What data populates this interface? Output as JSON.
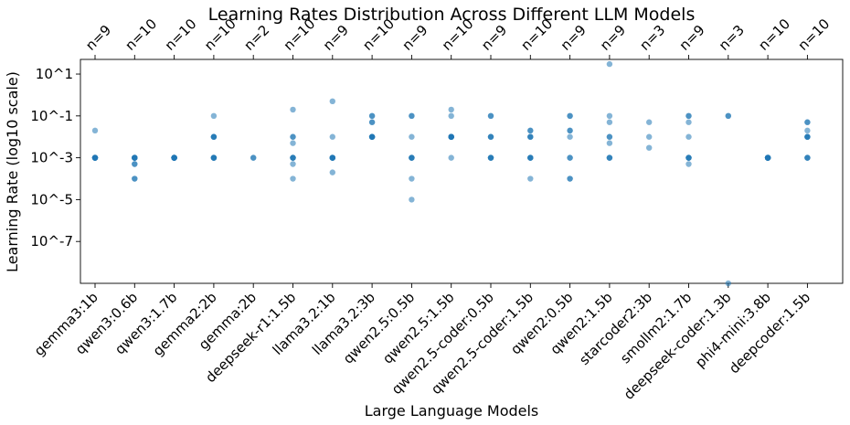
{
  "chart_data": {
    "type": "scatter",
    "title": "Learning Rates Distribution Across Different LLM Models",
    "xlabel": "Large Language Models",
    "ylabel": "Learning Rate (log10 scale)",
    "yscale": "log10",
    "ylim_log10": [
      -9,
      1.7
    ],
    "ytick_labels": [
      "10^1",
      "10^-1",
      "10^-3",
      "10^-5",
      "10^-7"
    ],
    "ytick_exponents": [
      1,
      -1,
      -3,
      -5,
      -7
    ],
    "grid": false,
    "color": "#1f77b4",
    "categories": [
      "gemma3:1b",
      "qwen3:0.6b",
      "qwen3:1.7b",
      "gemma2:2b",
      "gemma:2b",
      "deepseek-r1:1.5b",
      "llama3.2:1b",
      "llama3.2:3b",
      "qwen2.5:0.5b",
      "qwen2.5:1.5b",
      "qwen2.5-coder:0.5b",
      "qwen2.5-coder:1.5b",
      "qwen2:0.5b",
      "qwen2:1.5b",
      "starcoder2:3b",
      "smollm2:1.7b",
      "deepseek-coder:1.3b",
      "phi4-mini:3.8b",
      "deepcoder:1.5b"
    ],
    "counts": [
      "n=9",
      "n=10",
      "n=10",
      "n=10",
      "n=2",
      "n=10",
      "n=9",
      "n=10",
      "n=9",
      "n=10",
      "n=9",
      "n=10",
      "n=9",
      "n=9",
      "n=3",
      "n=9",
      "n=3",
      "n=10",
      "n=10"
    ],
    "series": [
      {
        "model": "gemma3:1b",
        "values": [
          0.02,
          0.001,
          0.001,
          0.001,
          0.001,
          0.001,
          0.001,
          0.001,
          0.001
        ]
      },
      {
        "model": "qwen3:0.6b",
        "values": [
          0.001,
          0.001,
          0.001,
          0.001,
          0.001,
          0.0005,
          0.0005,
          0.0001,
          0.0001,
          0.001
        ]
      },
      {
        "model": "qwen3:1.7b",
        "values": [
          0.001,
          0.001,
          0.001,
          0.001,
          0.001,
          0.001,
          0.001,
          0.001,
          0.001,
          0.001
        ]
      },
      {
        "model": "gemma2:2b",
        "values": [
          0.1,
          0.01,
          0.01,
          0.01,
          0.01,
          0.001,
          0.001,
          0.001,
          0.001,
          0.001
        ]
      },
      {
        "model": "gemma:2b",
        "values": [
          0.001,
          0.001
        ]
      },
      {
        "model": "deepseek-r1:1.5b",
        "values": [
          0.2,
          0.01,
          0.01,
          0.005,
          0.001,
          0.001,
          0.001,
          0.0005,
          0.0001,
          0.001
        ]
      },
      {
        "model": "llama3.2:1b",
        "values": [
          0.5,
          0.01,
          0.001,
          0.001,
          0.001,
          0.001,
          0.001,
          0.0002,
          0.001
        ]
      },
      {
        "model": "llama3.2:3b",
        "values": [
          0.1,
          0.1,
          0.05,
          0.05,
          0.01,
          0.01,
          0.01,
          0.01,
          0.01,
          0.01
        ]
      },
      {
        "model": "qwen2.5:0.5b",
        "values": [
          0.1,
          0.1,
          0.01,
          0.001,
          0.001,
          0.001,
          0.001,
          0.0001,
          1e-05
        ]
      },
      {
        "model": "qwen2.5:1.5b",
        "values": [
          0.2,
          0.1,
          0.01,
          0.01,
          0.01,
          0.01,
          0.01,
          0.01,
          0.001,
          0.01
        ]
      },
      {
        "model": "qwen2.5-coder:0.5b",
        "values": [
          0.1,
          0.1,
          0.01,
          0.01,
          0.01,
          0.001,
          0.001,
          0.001,
          0.001
        ]
      },
      {
        "model": "qwen2.5-coder:1.5b",
        "values": [
          0.02,
          0.02,
          0.01,
          0.01,
          0.001,
          0.001,
          0.001,
          0.001,
          0.0001,
          0.01
        ]
      },
      {
        "model": "qwen2:0.5b",
        "values": [
          0.1,
          0.1,
          0.02,
          0.02,
          0.01,
          0.001,
          0.001,
          0.0001,
          0.0001
        ]
      },
      {
        "model": "qwen2:1.5b",
        "values": [
          30,
          0.1,
          0.05,
          0.01,
          0.01,
          0.005,
          0.001,
          0.001,
          0.001
        ]
      },
      {
        "model": "starcoder2:3b",
        "values": [
          0.05,
          0.01,
          0.003
        ]
      },
      {
        "model": "smollm2:1.7b",
        "values": [
          0.1,
          0.1,
          0.05,
          0.01,
          0.001,
          0.001,
          0.001,
          0.0005,
          0.001
        ]
      },
      {
        "model": "deepseek-coder:1.3b",
        "values": [
          0.1,
          0.1,
          1e-09
        ]
      },
      {
        "model": "phi4-mini:3.8b",
        "values": [
          0.001,
          0.001,
          0.001,
          0.001,
          0.001,
          0.001,
          0.001,
          0.001,
          0.001,
          0.001
        ]
      },
      {
        "model": "deepcoder:1.5b",
        "values": [
          0.05,
          0.05,
          0.02,
          0.01,
          0.01,
          0.01,
          0.01,
          0.001,
          0.001,
          0.001
        ]
      }
    ]
  }
}
